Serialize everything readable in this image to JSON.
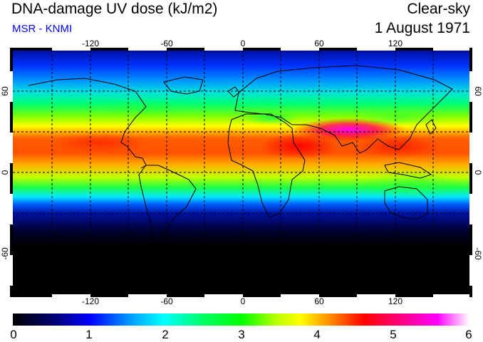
{
  "header": {
    "title": "DNA-damage UV dose (kJ/m2)",
    "subtitle": "MSR - KNMI",
    "mode": "Clear-sky",
    "date": "1 August 1971"
  },
  "map": {
    "projection": "equirectangular",
    "lon_range": [
      -180,
      180
    ],
    "lat_range": [
      -90,
      90
    ],
    "lon_ticks": [
      "-120",
      "-60",
      "0",
      "60",
      "120"
    ],
    "lat_ticks": [
      "60",
      "0",
      "-60"
    ],
    "right_lat_ticks": [
      "60",
      "0",
      "-60"
    ],
    "grid": "dashed, every 30 degrees",
    "coastlines": true
  },
  "colorbar": {
    "min": 0,
    "max": 6,
    "labels": [
      "0",
      "1",
      "2",
      "3",
      "4",
      "5",
      "6"
    ],
    "colors": [
      "#000000",
      "#000080",
      "#0000ff",
      "#00c0ff",
      "#00ffff",
      "#00ff80",
      "#00ff00",
      "#c0ff00",
      "#ffff00",
      "#ff8000",
      "#ff0000",
      "#ff0080",
      "#ff00ff",
      "#ffffff"
    ]
  }
}
